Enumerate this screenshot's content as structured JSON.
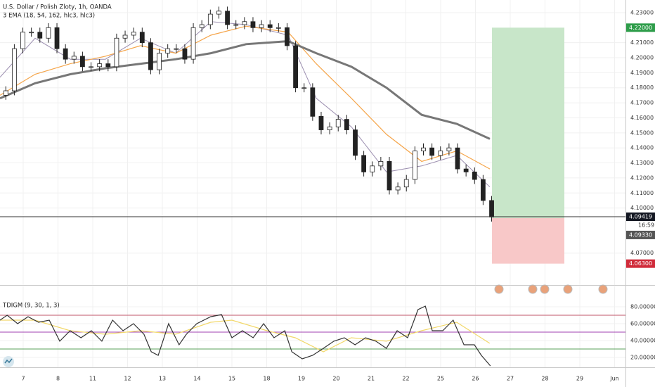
{
  "chart_data": [
    {
      "type": "candlestick",
      "title": "U.S. Dollar / Polish Zloty, 1h, OANDA",
      "subtitle": "3 EMA (18, 54, 162, hlc3, hlc3)",
      "x": [
        -0.5,
        -0.255,
        -0.01,
        0.235,
        0.48,
        0.725,
        0.97,
        1.215,
        1.46,
        1.705,
        1.95,
        2.195,
        2.44,
        2.685,
        2.93,
        3.175,
        3.42,
        3.665,
        3.91,
        4.155,
        4.4,
        4.645,
        4.89,
        5.135,
        5.38,
        5.625,
        5.87,
        6.115,
        6.36,
        6.605,
        6.85,
        7.095,
        7.34,
        7.585,
        7.83,
        8.075,
        8.32,
        8.565,
        8.81,
        9.055,
        9.3,
        9.545,
        9.79,
        10.035,
        10.28,
        10.525,
        10.77,
        11.015,
        11.26,
        11.505,
        11.75,
        11.995,
        12.24,
        12.485,
        12.73,
        12.975,
        13.22,
        13.465
      ],
      "open": [
        4.175,
        4.178,
        4.206,
        4.217,
        4.217,
        4.213,
        4.22,
        4.206,
        4.199,
        4.201,
        4.194,
        4.194,
        4.196,
        4.194,
        4.213,
        4.215,
        4.217,
        4.21,
        4.192,
        4.203,
        4.206,
        4.206,
        4.199,
        4.22,
        4.222,
        4.229,
        4.231,
        4.222,
        4.222,
        4.224,
        4.22,
        4.222,
        4.22,
        4.22,
        4.208,
        4.18,
        4.18,
        4.161,
        4.152,
        4.154,
        4.159,
        4.152,
        4.135,
        4.124,
        4.128,
        4.131,
        4.112,
        4.114,
        4.119,
        4.138,
        4.14,
        4.135,
        4.138,
        4.14,
        4.126,
        4.124,
        4.119,
        4.105
      ],
      "high": [
        4.181,
        4.209,
        4.22,
        4.22,
        4.22,
        4.223,
        4.223,
        4.209,
        4.204,
        4.204,
        4.197,
        4.199,
        4.199,
        4.216,
        4.218,
        4.22,
        4.22,
        4.213,
        4.206,
        4.209,
        4.209,
        4.209,
        4.223,
        4.225,
        4.232,
        4.234,
        4.234,
        4.225,
        4.227,
        4.227,
        4.225,
        4.225,
        4.223,
        4.223,
        4.211,
        4.183,
        4.183,
        4.164,
        4.157,
        4.162,
        4.162,
        4.155,
        4.138,
        4.131,
        4.134,
        4.134,
        4.117,
        4.122,
        4.141,
        4.143,
        4.143,
        4.141,
        4.143,
        4.143,
        4.129,
        4.127,
        4.122,
        4.108
      ],
      "low": [
        4.172,
        4.175,
        4.203,
        4.214,
        4.21,
        4.21,
        4.203,
        4.196,
        4.196,
        4.191,
        4.191,
        4.191,
        4.191,
        4.191,
        4.21,
        4.212,
        4.207,
        4.189,
        4.189,
        4.2,
        4.203,
        4.196,
        4.196,
        4.217,
        4.219,
        4.226,
        4.219,
        4.219,
        4.219,
        4.217,
        4.217,
        4.217,
        4.217,
        4.205,
        4.177,
        4.177,
        4.158,
        4.149,
        4.149,
        4.151,
        4.149,
        4.132,
        4.121,
        4.121,
        4.125,
        4.109,
        4.109,
        4.111,
        4.116,
        4.135,
        4.132,
        4.132,
        4.135,
        4.123,
        4.121,
        4.116,
        4.102,
        4.091
      ],
      "close": [
        4.178,
        4.206,
        4.217,
        4.217,
        4.213,
        4.22,
        4.206,
        4.199,
        4.201,
        4.194,
        4.194,
        4.196,
        4.194,
        4.213,
        4.215,
        4.217,
        4.21,
        4.192,
        4.203,
        4.206,
        4.206,
        4.199,
        4.22,
        4.222,
        4.229,
        4.231,
        4.222,
        4.222,
        4.224,
        4.22,
        4.222,
        4.22,
        4.22,
        4.208,
        4.18,
        4.18,
        4.161,
        4.152,
        4.154,
        4.159,
        4.152,
        4.135,
        4.124,
        4.128,
        4.131,
        4.112,
        4.114,
        4.119,
        4.138,
        4.14,
        4.135,
        4.138,
        4.14,
        4.126,
        4.124,
        4.119,
        4.105,
        4.094
      ],
      "up_color": "#ffffff",
      "down_color": "#222222",
      "series": [
        {
          "color": "#9c8fb0",
          "width": 1,
          "x": [
            -0.667,
            0.343,
            1.354,
            2.364,
            3.374,
            4.384,
            5.394,
            6.404,
            7.616,
            8.424,
            9.434,
            10.444,
            11.455,
            12.465,
            13.414
          ],
          "values": [
            4.187,
            4.213,
            4.199,
            4.199,
            4.213,
            4.203,
            4.224,
            4.222,
            4.215,
            4.173,
            4.154,
            4.124,
            4.128,
            4.135,
            4.114
          ]
        },
        {
          "color": "#f5a54a",
          "width": 1.2,
          "x": [
            -0.667,
            0.343,
            1.354,
            2.364,
            3.374,
            4.384,
            5.394,
            6.404,
            7.616,
            8.424,
            9.434,
            10.444,
            11.455,
            12.465,
            13.414
          ],
          "values": [
            4.175,
            4.189,
            4.196,
            4.201,
            4.208,
            4.203,
            4.215,
            4.221,
            4.217,
            4.196,
            4.173,
            4.149,
            4.131,
            4.138,
            4.126
          ]
        },
        {
          "color": "#777777",
          "width": 3,
          "x": [
            -0.667,
            0.343,
            1.354,
            2.364,
            3.374,
            4.384,
            5.394,
            6.404,
            7.616,
            8.424,
            9.434,
            10.444,
            11.455,
            12.465,
            13.414
          ],
          "values": [
            4.173,
            4.183,
            4.189,
            4.193,
            4.196,
            4.199,
            4.203,
            4.209,
            4.211,
            4.203,
            4.194,
            4.18,
            4.162,
            4.156,
            4.146
          ]
        }
      ],
      "position": {
        "x": [
          13.475,
          15.556
        ],
        "target": {
          "value": 4.22,
          "label": "4.22000"
        },
        "entry": {
          "value": 4.0933,
          "label": "4.09330"
        },
        "stop": {
          "value": 4.063,
          "label": "4.06300"
        },
        "profit_color": "#c8e6c9",
        "loss_color": "#f8c8c8"
      },
      "last_price": {
        "value": 4.09419,
        "label": "4.09419"
      },
      "countdown": "16:59",
      "xlim": [
        -0.667,
        17.313
      ],
      "ylim": [
        4.0488,
        4.2384
      ],
      "xticks": [
        {
          "value": 0,
          "label": "7"
        },
        {
          "value": 1,
          "label": "8"
        },
        {
          "value": 2,
          "label": "11"
        },
        {
          "value": 3,
          "label": "12"
        },
        {
          "value": 4,
          "label": "13"
        },
        {
          "value": 5,
          "label": "14"
        },
        {
          "value": 6,
          "label": "15"
        },
        {
          "value": 7,
          "label": "18"
        },
        {
          "value": 8,
          "label": "19"
        },
        {
          "value": 9,
          "label": "20"
        },
        {
          "value": 10,
          "label": "21"
        },
        {
          "value": 11,
          "label": "22"
        },
        {
          "value": 12,
          "label": "25"
        },
        {
          "value": 13,
          "label": "26"
        },
        {
          "value": 14,
          "label": "27"
        },
        {
          "value": 15,
          "label": "28"
        },
        {
          "value": 16,
          "label": "29"
        },
        {
          "value": 17,
          "label": "Jun"
        }
      ],
      "yticks": [
        {
          "value": 4.07,
          "label": "4.07000"
        },
        {
          "value": 4.1,
          "label": "4.10000"
        },
        {
          "value": 4.11,
          "label": "4.11000"
        },
        {
          "value": 4.12,
          "label": "4.12000"
        },
        {
          "value": 4.13,
          "label": "4.13000"
        },
        {
          "value": 4.14,
          "label": "4.14000"
        },
        {
          "value": 4.15,
          "label": "4.15000"
        },
        {
          "value": 4.16,
          "label": "4.16000"
        },
        {
          "value": 4.17,
          "label": "4.17000"
        },
        {
          "value": 4.18,
          "label": "4.18000"
        },
        {
          "value": 4.19,
          "label": "4.19000"
        },
        {
          "value": 4.2,
          "label": "4.20000"
        },
        {
          "value": 4.21,
          "label": "4.21000"
        },
        {
          "value": 4.23,
          "label": "4.23000"
        }
      ],
      "grid": true
    },
    {
      "type": "line",
      "title": "TDIGM (9, 30, 1, 3)",
      "series": [
        {
          "color": "#333333",
          "width": 1.2,
          "x": [
            -0.67,
            -0.46,
            -0.16,
            0.14,
            0.44,
            0.75,
            1.05,
            1.35,
            1.66,
            1.96,
            2.26,
            2.57,
            2.87,
            3.17,
            3.47,
            3.68,
            3.88,
            4.18,
            4.48,
            4.69,
            4.99,
            5.39,
            5.7,
            6,
            6.3,
            6.61,
            6.91,
            7.21,
            7.52,
            7.72,
            8.02,
            8.32,
            8.63,
            8.93,
            9.23,
            9.54,
            9.84,
            10.14,
            10.44,
            10.75,
            11.05,
            11.35,
            11.56,
            11.76,
            12.06,
            12.36,
            12.67,
            12.97,
            13.17,
            13.43
          ],
          "values": [
            64.2,
            70,
            60,
            68.3,
            61.7,
            64.2,
            39.2,
            51.7,
            43.3,
            51.7,
            39.2,
            64.2,
            51.7,
            60,
            47.5,
            26.7,
            22.5,
            60,
            35,
            47.5,
            60,
            68.3,
            70.8,
            43.3,
            51.7,
            43.3,
            60,
            43.3,
            51.7,
            26.7,
            18.3,
            22.5,
            30.8,
            39.2,
            43.3,
            35,
            43.3,
            39.2,
            30.8,
            51.7,
            43.3,
            76.7,
            80.8,
            51.7,
            51.7,
            64.2,
            35,
            35,
            22.5,
            10
          ]
        },
        {
          "color": "#f2d86a",
          "width": 1.2,
          "x": [
            -0.67,
            0.34,
            1.35,
            2.36,
            3.37,
            4.38,
            5.39,
            6,
            7.01,
            7.82,
            8.63,
            9.43,
            10.44,
            11.45,
            12.46,
            13.41
          ],
          "values": [
            64.2,
            64.2,
            51.7,
            47.5,
            51.7,
            47.5,
            61.7,
            64.2,
            51.7,
            43.3,
            26.7,
            43.3,
            39.2,
            51.7,
            61.7,
            36.7
          ]
        }
      ],
      "levels": [
        {
          "value": 70,
          "color": "#c2556a"
        },
        {
          "value": 50,
          "color": "#a040b0"
        },
        {
          "value": 30,
          "color": "#5aa05a"
        }
      ],
      "ylim": [
        8.3,
        104.2
      ],
      "yticks": [
        {
          "value": 80,
          "label": "80.00000"
        },
        {
          "value": 60,
          "label": "60.00000"
        },
        {
          "value": 40,
          "label": "40.00000"
        },
        {
          "value": 20,
          "label": "20.00000"
        }
      ]
    }
  ]
}
